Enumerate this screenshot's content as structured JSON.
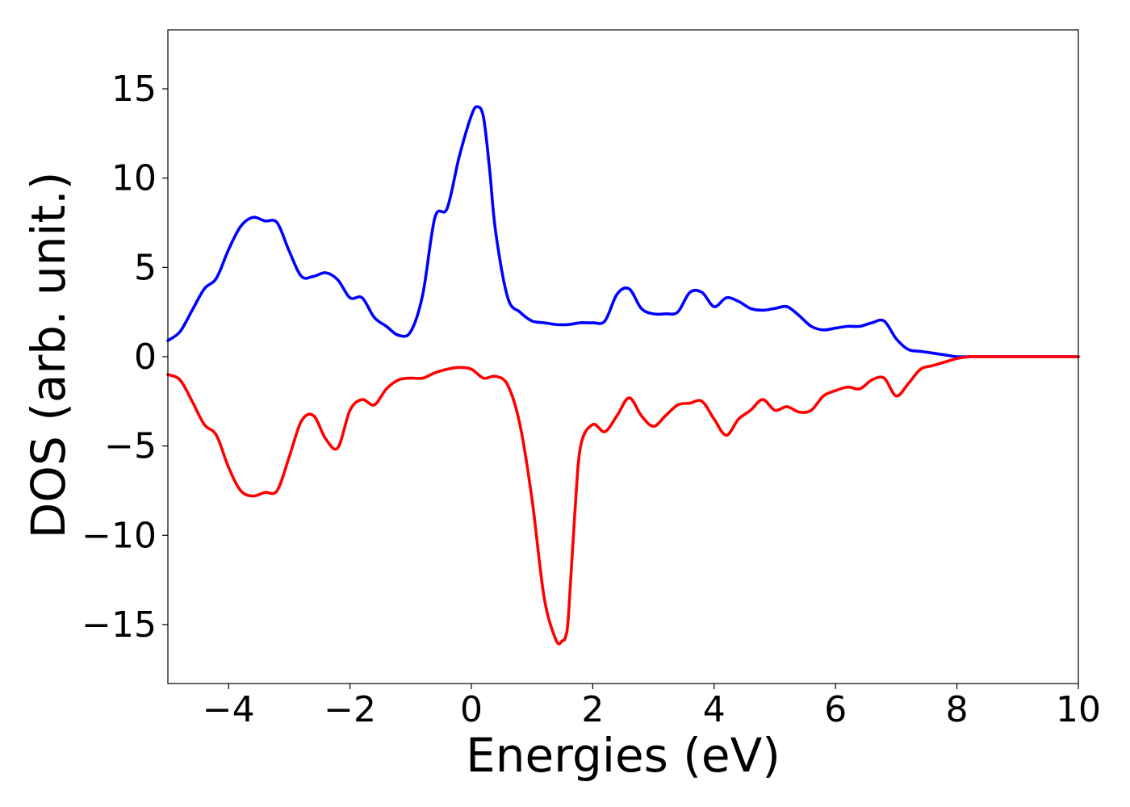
{
  "chart_data": {
    "type": "line",
    "title": "",
    "xlabel": "Energies (eV)",
    "ylabel": "DOS (arb. unit.)",
    "xlim": [
      -5,
      10
    ],
    "ylim": [
      -18.3,
      18.3
    ],
    "xticks": [
      -4,
      -2,
      0,
      2,
      4,
      6,
      8,
      10
    ],
    "xtick_labels": [
      "−4",
      "−2",
      "0",
      "2",
      "4",
      "6",
      "8",
      "10"
    ],
    "yticks": [
      15,
      10,
      5,
      0,
      -5,
      -10,
      -15
    ],
    "ytick_labels": [
      "15",
      "10",
      "5",
      "0",
      "−5",
      "−10",
      "−15"
    ],
    "grid": false,
    "series": [
      {
        "color": "#0000ff",
        "x": [
          -5.0,
          -4.8,
          -4.6,
          -4.4,
          -4.2,
          -4.0,
          -3.8,
          -3.6,
          -3.4,
          -3.2,
          -3.0,
          -2.8,
          -2.6,
          -2.4,
          -2.2,
          -2.0,
          -1.8,
          -1.6,
          -1.4,
          -1.2,
          -1.0,
          -0.8,
          -0.6,
          -0.4,
          -0.2,
          0.0,
          0.1,
          0.2,
          0.3,
          0.4,
          0.6,
          0.8,
          1.0,
          1.2,
          1.4,
          1.6,
          1.8,
          2.0,
          2.2,
          2.4,
          2.6,
          2.8,
          3.0,
          3.2,
          3.4,
          3.6,
          3.8,
          4.0,
          4.2,
          4.4,
          4.6,
          4.8,
          5.0,
          5.2,
          5.4,
          5.6,
          5.8,
          6.0,
          6.2,
          6.4,
          6.6,
          6.8,
          7.0,
          7.2,
          7.4,
          7.6,
          7.8,
          8.0,
          8.2,
          8.4,
          8.6,
          9.0,
          10.0
        ],
        "y": [
          0.9,
          1.4,
          2.6,
          3.8,
          4.4,
          6.0,
          7.3,
          7.8,
          7.6,
          7.5,
          5.9,
          4.5,
          4.5,
          4.7,
          4.3,
          3.3,
          3.3,
          2.2,
          1.7,
          1.2,
          1.4,
          3.5,
          7.8,
          8.3,
          11.2,
          13.5,
          14.0,
          13.4,
          10.5,
          7.0,
          3.3,
          2.5,
          2.0,
          1.9,
          1.8,
          1.8,
          1.9,
          1.9,
          2.0,
          3.5,
          3.8,
          2.7,
          2.4,
          2.4,
          2.5,
          3.6,
          3.6,
          2.8,
          3.3,
          3.1,
          2.7,
          2.6,
          2.7,
          2.8,
          2.3,
          1.7,
          1.5,
          1.6,
          1.7,
          1.7,
          1.9,
          2.0,
          1.0,
          0.4,
          0.3,
          0.2,
          0.1,
          0.0,
          0.0,
          0.0,
          0.0,
          0.0,
          0.0
        ]
      },
      {
        "color": "#ff0000",
        "x": [
          -5.0,
          -4.8,
          -4.6,
          -4.4,
          -4.2,
          -4.0,
          -3.8,
          -3.6,
          -3.4,
          -3.2,
          -3.0,
          -2.8,
          -2.6,
          -2.4,
          -2.2,
          -2.0,
          -1.8,
          -1.6,
          -1.4,
          -1.2,
          -1.0,
          -0.8,
          -0.6,
          -0.4,
          -0.2,
          0.0,
          0.2,
          0.4,
          0.6,
          0.8,
          1.0,
          1.2,
          1.4,
          1.5,
          1.55,
          1.6,
          1.7,
          1.8,
          2.0,
          2.2,
          2.4,
          2.6,
          2.8,
          3.0,
          3.2,
          3.4,
          3.6,
          3.8,
          4.0,
          4.2,
          4.4,
          4.6,
          4.8,
          5.0,
          5.2,
          5.4,
          5.6,
          5.8,
          6.0,
          6.2,
          6.4,
          6.6,
          6.8,
          7.0,
          7.2,
          7.4,
          7.6,
          7.8,
          8.0,
          8.2,
          8.4,
          8.6,
          9.0,
          10.0
        ],
        "y": [
          -1.0,
          -1.3,
          -2.5,
          -3.8,
          -4.4,
          -6.2,
          -7.5,
          -7.8,
          -7.6,
          -7.5,
          -5.6,
          -3.6,
          -3.3,
          -4.6,
          -5.1,
          -3.0,
          -2.4,
          -2.7,
          -1.8,
          -1.3,
          -1.2,
          -1.2,
          -0.9,
          -0.7,
          -0.6,
          -0.7,
          -1.2,
          -1.1,
          -1.6,
          -3.8,
          -8.0,
          -13.5,
          -15.9,
          -15.9,
          -15.7,
          -14.5,
          -9.0,
          -5.0,
          -3.8,
          -4.2,
          -3.3,
          -2.3,
          -3.3,
          -3.9,
          -3.3,
          -2.7,
          -2.6,
          -2.5,
          -3.5,
          -4.4,
          -3.5,
          -3.0,
          -2.4,
          -3.0,
          -2.8,
          -3.1,
          -3.0,
          -2.2,
          -1.9,
          -1.7,
          -1.8,
          -1.3,
          -1.2,
          -2.2,
          -1.5,
          -0.7,
          -0.5,
          -0.3,
          -0.1,
          0.0,
          0.0,
          0.0,
          0.0,
          0.0
        ]
      }
    ]
  }
}
